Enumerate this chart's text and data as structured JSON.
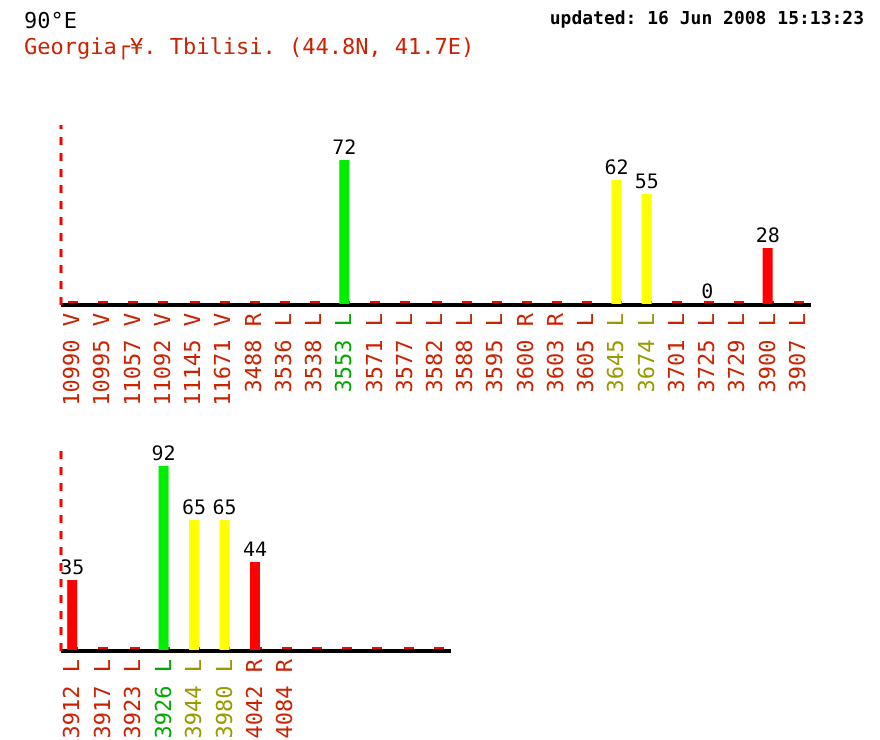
{
  "chart_data": [
    {
      "type": "bar",
      "title": "90°E",
      "subtitle": "Georgia┌¥. Tbilisi.  (44.8N, 41.7E)",
      "annotations": [
        "updated: 16 Jun 2008 15:13:23"
      ],
      "categories": [
        "10990 V",
        "10995 V",
        "11057 V",
        "11092 V",
        "11145 V",
        "11671 V",
        "3488 R",
        "3536 L",
        "3538 L",
        "3553 L",
        "3571 L",
        "3577 L",
        "3582 L",
        "3588 L",
        "3595 L",
        "3600 R",
        "3603 R",
        "3605 L",
        "3645 L",
        "3674 L",
        "3701 L",
        "3725 L",
        "3729 L",
        "3900 L",
        "3907 L"
      ],
      "values": [
        0,
        0,
        0,
        0,
        0,
        0,
        0,
        0,
        0,
        72,
        0,
        0,
        0,
        0,
        0,
        0,
        0,
        0,
        62,
        55,
        0,
        0,
        0,
        28,
        0
      ],
      "value_labels": [
        null,
        null,
        null,
        null,
        null,
        null,
        null,
        null,
        null,
        "72",
        null,
        null,
        null,
        null,
        null,
        null,
        null,
        null,
        "62",
        "55",
        null,
        "0",
        null,
        "28",
        null
      ],
      "colors": [
        "#ff0000",
        "#ff0000",
        "#ff0000",
        "#ff0000",
        "#ff0000",
        "#ff0000",
        "#ff0000",
        "#ff0000",
        "#ff0000",
        "#00ee00",
        "#ff0000",
        "#ff0000",
        "#ff0000",
        "#ff0000",
        "#ff0000",
        "#ff0000",
        "#ff0000",
        "#ff0000",
        "#ffff00",
        "#ffff00",
        "#ff0000",
        "#ff0000",
        "#ff0000",
        "#ff0000",
        "#ff0000"
      ],
      "ylim": [
        0,
        90
      ]
    },
    {
      "type": "bar",
      "categories": [
        "3912 L",
        "3917 L",
        "3923 L",
        "3926 L",
        "3944 L",
        "3980 L",
        "4042 R",
        "4084 R",
        null,
        null,
        null,
        null,
        null
      ],
      "values": [
        35,
        0,
        0,
        92,
        65,
        65,
        44,
        0,
        0,
        0,
        0,
        0,
        0
      ],
      "value_labels": [
        "35",
        null,
        null,
        "92",
        "65",
        "65",
        "44",
        null,
        null,
        null,
        null,
        null,
        null
      ],
      "colors": [
        "#ff0000",
        "#ff0000",
        "#ff0000",
        "#00ee00",
        "#ffff00",
        "#ffff00",
        "#ff0000",
        "#ff0000",
        "#ff0000",
        "#ff0000",
        "#ff0000",
        "#ff0000",
        "#ff0000"
      ],
      "ylim": [
        0,
        100
      ]
    }
  ]
}
